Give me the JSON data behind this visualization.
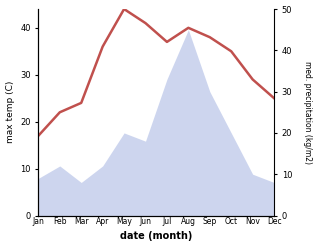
{
  "months": [
    "Jan",
    "Feb",
    "Mar",
    "Apr",
    "May",
    "Jun",
    "Jul",
    "Aug",
    "Sep",
    "Oct",
    "Nov",
    "Dec"
  ],
  "temperature": [
    17,
    22,
    24,
    36,
    44,
    41,
    37,
    40,
    38,
    35,
    29,
    25
  ],
  "precipitation": [
    9,
    12,
    8,
    12,
    20,
    18,
    33,
    45,
    30,
    20,
    10,
    8
  ],
  "temp_color": "#c0504d",
  "precip_fill_color": "#b8c4e8",
  "ylabel_left": "max temp (C)",
  "ylabel_right": "med. precipitation (kg/m2)",
  "xlabel": "date (month)",
  "ylim_left": [
    0,
    44
  ],
  "ylim_right": [
    0,
    50
  ],
  "yticks_left": [
    0,
    10,
    20,
    30,
    40
  ],
  "yticks_right": [
    0,
    10,
    20,
    30,
    40,
    50
  ]
}
